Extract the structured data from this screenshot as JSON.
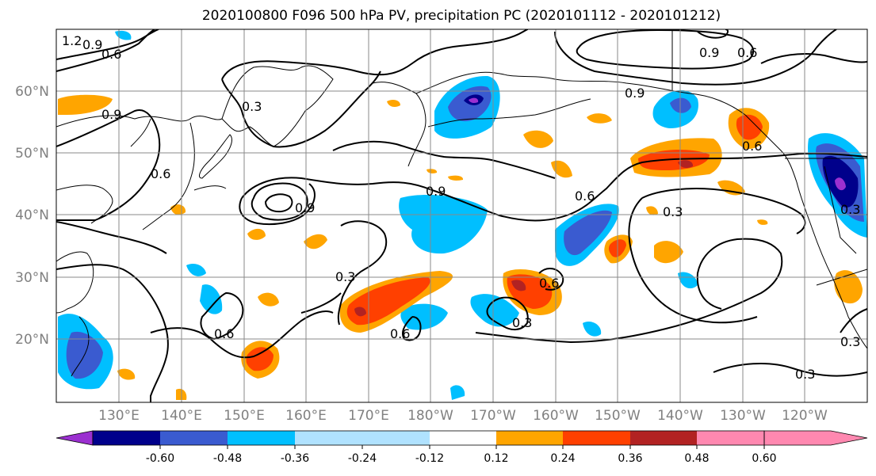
{
  "title": "2020100800 F096 500 hPa PV, precipitation PC (2020101112 - 2020101212)",
  "lat_labels": [
    "60°N",
    "50°N",
    "40°N",
    "30°N",
    "20°N"
  ],
  "lon_labels": [
    "130°E",
    "140°E",
    "150°E",
    "160°E",
    "170°E",
    "180°W",
    "170°W",
    "160°W",
    "150°W",
    "140°W",
    "130°W",
    "120°W"
  ],
  "colorbar": {
    "colors": [
      "#9b30d0",
      "#00008b",
      "#3a5bd0",
      "#00bfff",
      "#b0e2ff",
      "#ffffff",
      "#ffe680",
      "#ffa500",
      "#ff4000",
      "#b22222",
      "#ff88b0"
    ],
    "tick_labels": [
      "-0.60",
      "-0.48",
      "-0.36",
      "-0.24",
      "-0.12",
      "0.12",
      "0.24",
      "0.36",
      "0.48",
      "0.60"
    ]
  },
  "contour_labels": [
    "1.2",
    "0.9",
    "0.6",
    "0.9",
    "0.3",
    "0.6",
    "0.9",
    "0.9",
    "0.3",
    "0.6",
    "0.6",
    "0.3",
    "0.6",
    "0.3",
    "0.6",
    "0.9",
    "0.3",
    "0.6",
    "0.9",
    "0.6",
    "0.3",
    "0.3"
  ]
}
